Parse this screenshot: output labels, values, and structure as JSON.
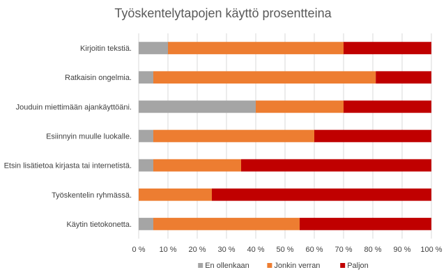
{
  "chart_data": {
    "type": "bar",
    "orientation": "horizontal",
    "stacked": "percent",
    "title": "Työskentelytapojen käyttö prosentteina",
    "categories": [
      "Kirjoitin tekstiä.",
      "Ratkaisin ongelmia.",
      "Jouduin miettimään ajankäyttöäni.",
      "Esiinnyin muulle luokalle.",
      "Etsin lisätietoa kirjasta tai internetistä.",
      "Työskentelin ryhmässä.",
      "Käytin tietokonetta."
    ],
    "series": [
      {
        "name": "En ollenkaan",
        "color": "#a5a5a5",
        "values": [
          10,
          5,
          40,
          5,
          5,
          0,
          5
        ]
      },
      {
        "name": "Jonkin verran",
        "color": "#ed7d31",
        "values": [
          60,
          76,
          30,
          55,
          30,
          25,
          50
        ]
      },
      {
        "name": "Paljon",
        "color": "#c00000",
        "values": [
          30,
          19,
          30,
          40,
          65,
          75,
          45
        ]
      }
    ],
    "x_ticks": [
      "0 %",
      "10 %",
      "20 %",
      "30 %",
      "40 %",
      "50 %",
      "60 %",
      "70 %",
      "80 %",
      "90 %",
      "100 %"
    ],
    "xlim": [
      0,
      100
    ],
    "grid": true,
    "legend_position": "bottom"
  }
}
